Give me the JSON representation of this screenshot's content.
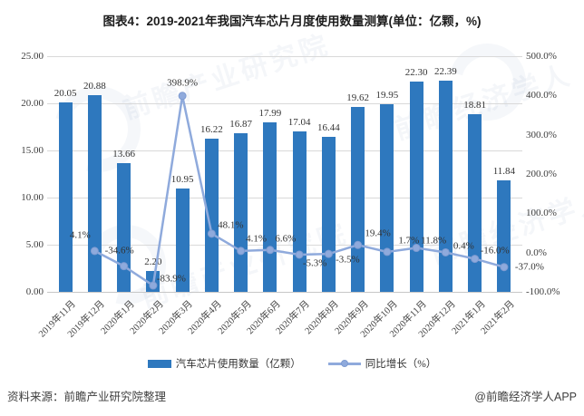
{
  "title": "图表4：2019-2021年我国汽车芯片月度使用数量测算(单位：亿颗，%)",
  "source_label": "资料来源：前瞻产业研究院整理",
  "brand_label": "@前瞻经济学人APP",
  "watermarks": {
    "text_primary": "前瞻产业研究院",
    "text_secondary": "前瞻经济学人"
  },
  "legend": {
    "bar_label": "汽车芯片使用数量（亿颗）",
    "line_label": "同比增长（%）"
  },
  "chart_data": {
    "type": "combo-bar-line",
    "title": "图表4：2019-2021年我国汽车芯片月度使用数量测算(单位：亿颗，%)",
    "grid": "horizontal",
    "legend_position": "bottom",
    "categories": [
      "2019年11月",
      "2019年12月",
      "2020年1月",
      "2020年2月",
      "2020年3月",
      "2020年4月",
      "2020年5月",
      "2020年6月",
      "2020年7月",
      "2020年8月",
      "2020年9月",
      "2020年10月",
      "2020年11月",
      "2020年12月",
      "2021年1月",
      "2021年2月"
    ],
    "series": [
      {
        "name": "汽车芯片使用数量（亿颗）",
        "type": "bar",
        "axis": "left",
        "color": "#2e78be",
        "values": [
          20.05,
          20.88,
          13.66,
          2.2,
          10.95,
          16.22,
          16.87,
          17.99,
          17.04,
          16.44,
          19.62,
          19.95,
          22.3,
          22.39,
          18.81,
          11.84
        ],
        "labels": [
          "20.05",
          "20.88",
          "13.66",
          "2.20",
          "10.95",
          "16.22",
          "16.87",
          "17.99",
          "17.04",
          "16.44",
          "19.62",
          "19.95",
          "22.30",
          "22.39",
          "18.81",
          "11.84"
        ]
      },
      {
        "name": "同比增长（%）",
        "type": "line",
        "axis": "right",
        "color": "#8faadc",
        "values": [
          null,
          4.1,
          -34.6,
          -83.9,
          398.9,
          48.1,
          4.1,
          6.6,
          -5.3,
          -3.5,
          19.4,
          1.7,
          11.8,
          0.4,
          -16.0,
          -37.0
        ],
        "labels": [
          null,
          "4.1%",
          "-34.6%",
          "-83.9%",
          "398.9%",
          "48.1%",
          "4.1%",
          "6.6%",
          "-5.3%",
          "-3.5%",
          "19.4%",
          "1.7%",
          "11.8%",
          "0.4%",
          "-16.0%",
          "-37.0%"
        ]
      }
    ],
    "left_axis": {
      "min": 0,
      "max": 25,
      "step": 5,
      "tick_labels": [
        "25.00",
        "20.00",
        "15.00",
        "10.00",
        "5.00",
        "0.00"
      ]
    },
    "right_axis": {
      "min": -100,
      "max": 500,
      "step": 100,
      "tick_labels": [
        "500.0%",
        "400.0%",
        "300.0%",
        "200.0%",
        "100.0%",
        "0.0%",
        "-100.0%"
      ]
    }
  }
}
